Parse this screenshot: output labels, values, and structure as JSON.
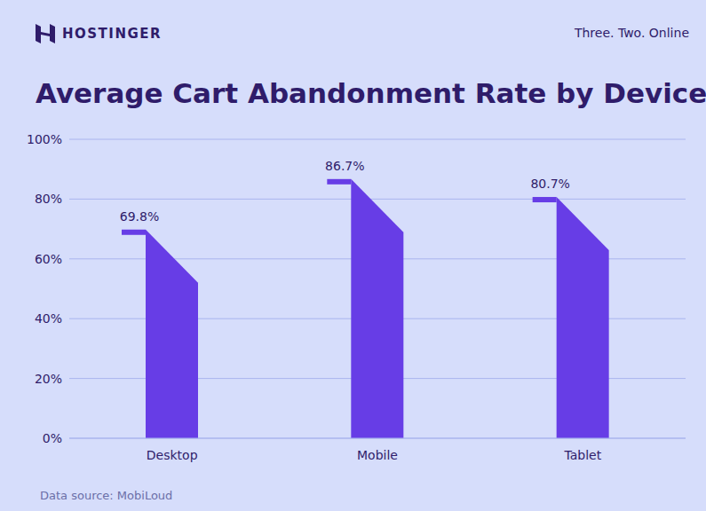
{
  "chart_data": {
    "type": "bar",
    "title": "Average Cart Abandonment Rate by Device",
    "logo_text": "HOSTINGER",
    "tagline": "Three. Two. Online",
    "source": "Data source: MobiLoud",
    "categories": [
      "Desktop",
      "Mobile",
      "Tablet"
    ],
    "values": [
      69.8,
      86.7,
      80.7
    ],
    "value_labels": [
      "69.8%",
      "86.7%",
      "80.7%"
    ],
    "color": "#673de6",
    "ylim": [
      0,
      100
    ],
    "yticks": [
      {
        "value": 0,
        "label": "0%"
      },
      {
        "value": 20,
        "label": "20%"
      },
      {
        "value": 40,
        "label": "40%"
      },
      {
        "value": 60,
        "label": "60%"
      },
      {
        "value": 80,
        "label": "80%"
      },
      {
        "value": 100,
        "label": "100%"
      }
    ],
    "grid": true,
    "data_labels": true
  }
}
